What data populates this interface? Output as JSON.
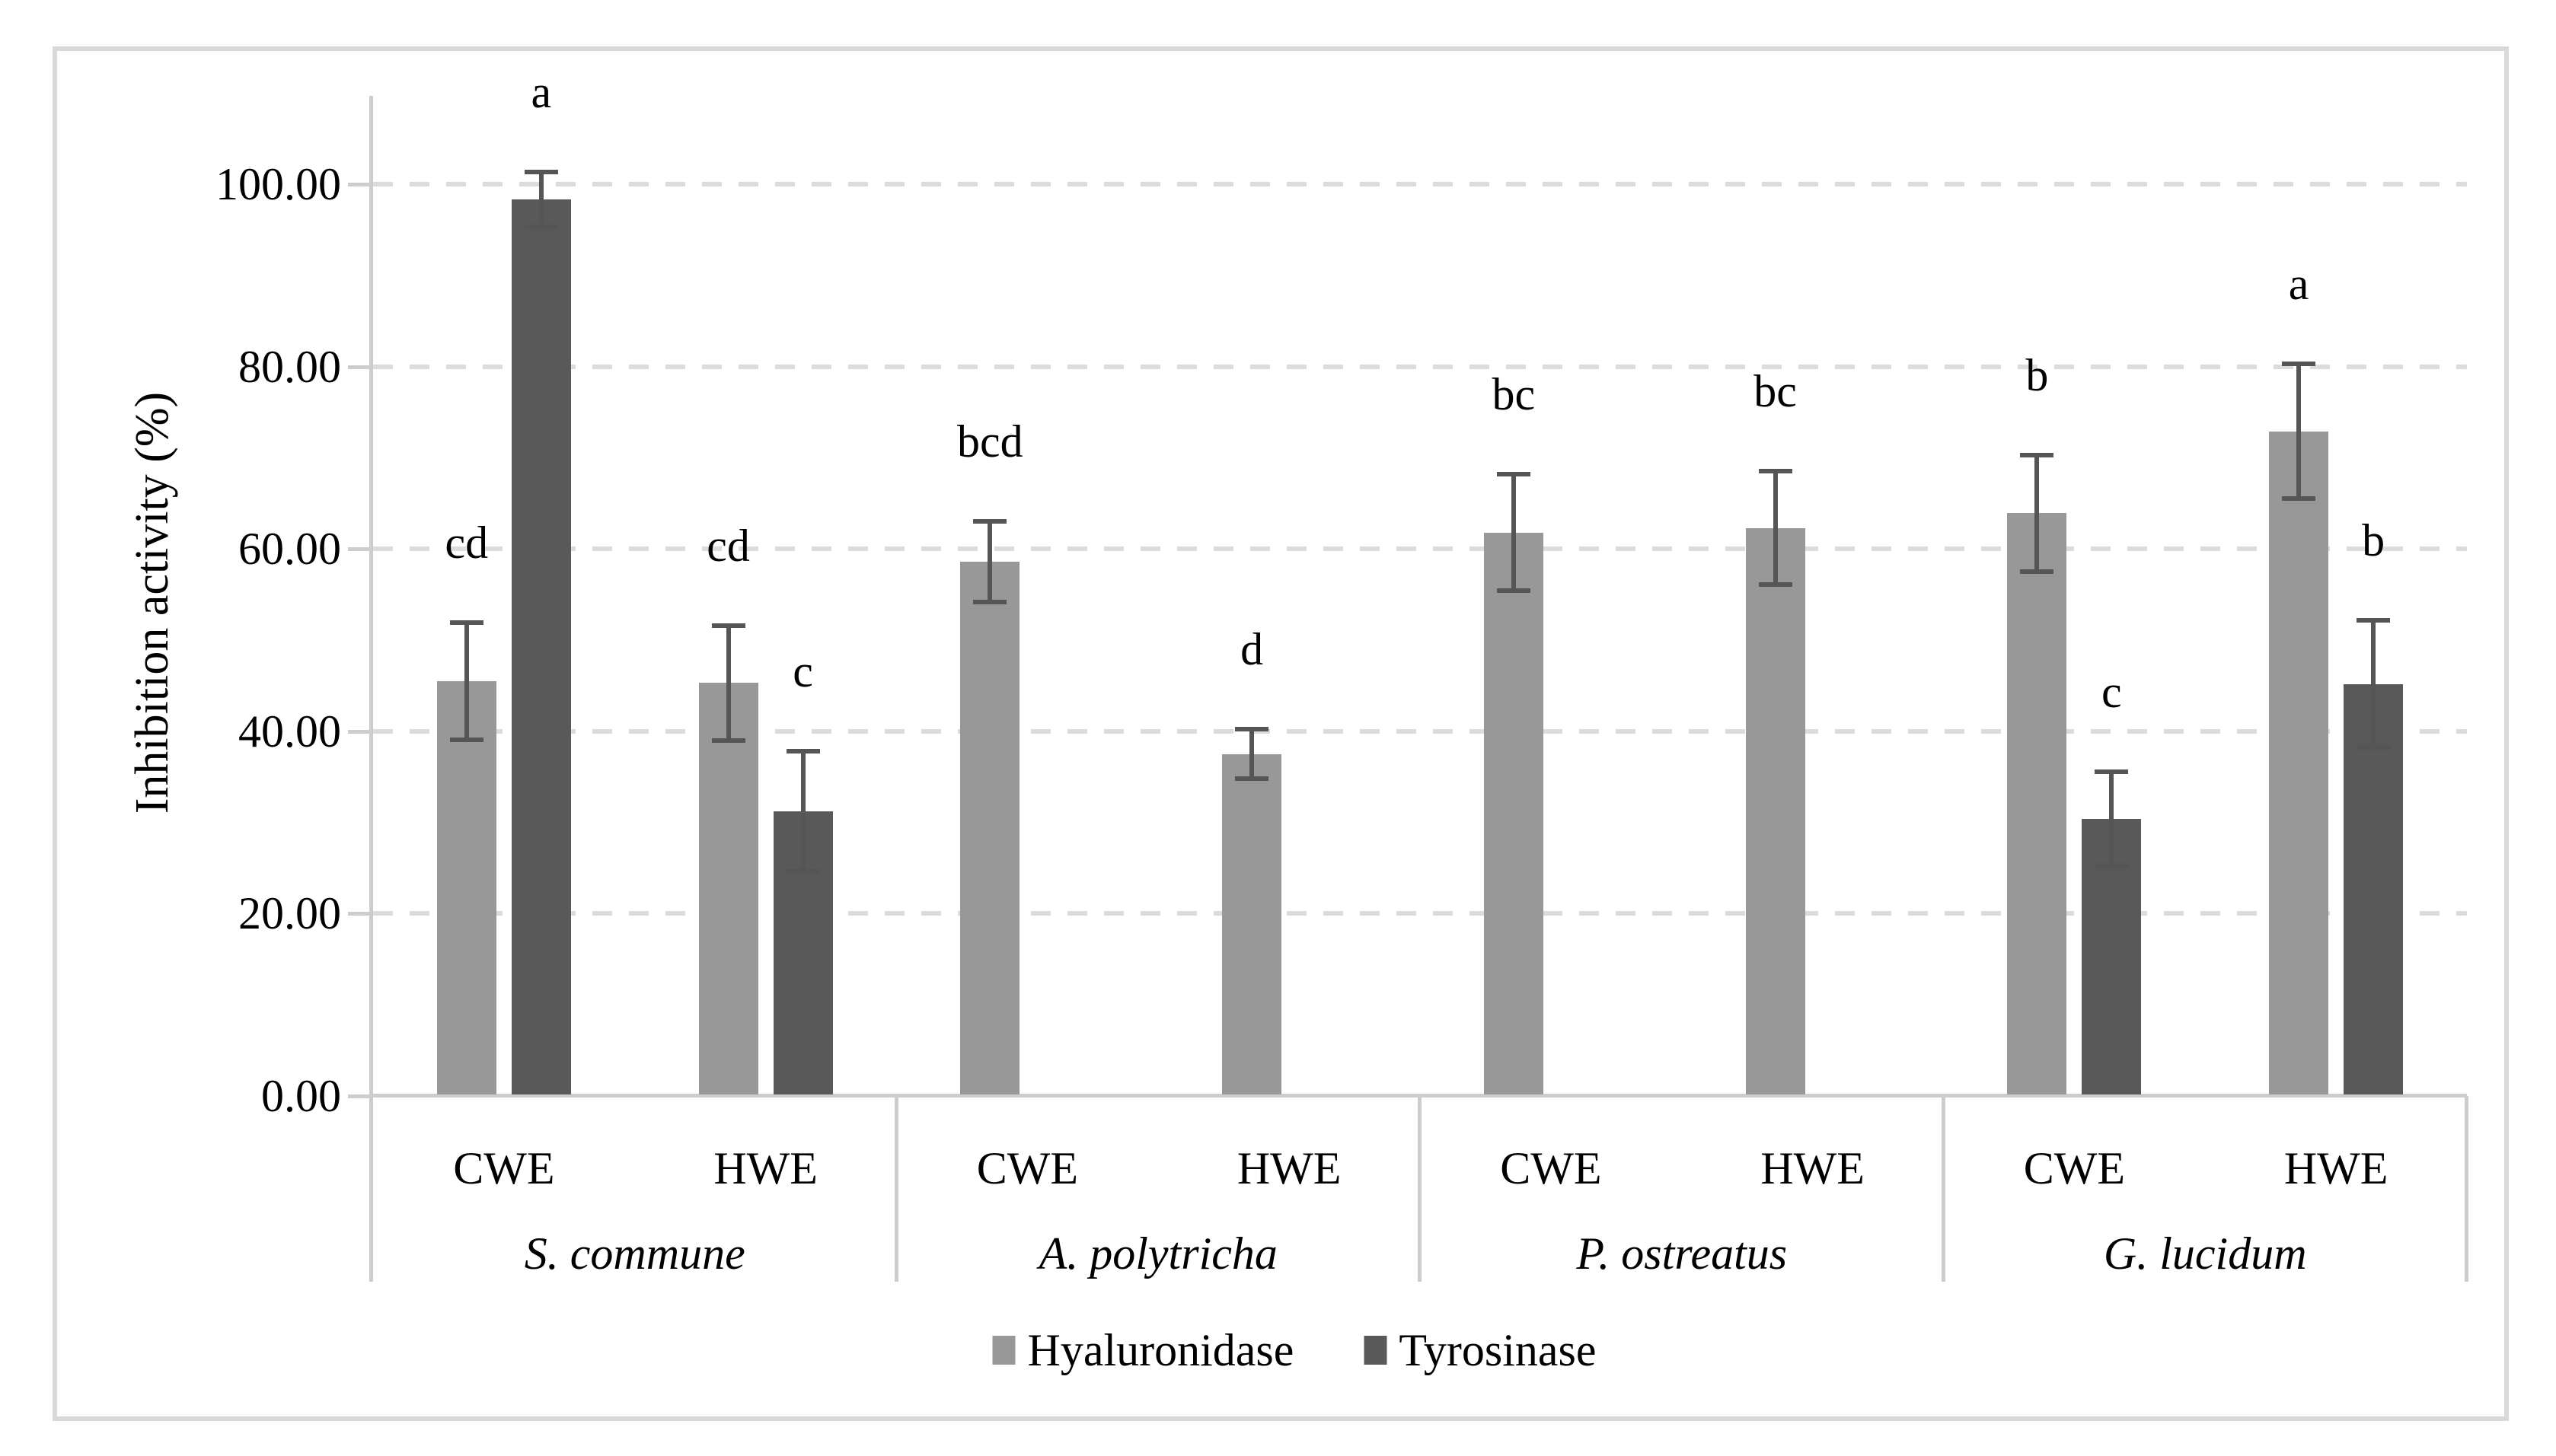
{
  "figure": {
    "frame_color": "#d9d9d9",
    "background": "#ffffff"
  },
  "colors": {
    "hyaluronidase_bar": "#989898",
    "tyrosinase_bar": "#595959",
    "error_bar": "#555555",
    "gridline": "#dcdcdc",
    "axis_line": "#cdcdcd",
    "text": "#000000"
  },
  "chart_data": {
    "type": "bar",
    "title": "",
    "ylabel": "Inhibition activity (%)",
    "xlabel": "",
    "ylim": [
      0,
      100
    ],
    "ytick_step": 20,
    "ytick_values": [
      0,
      20,
      40,
      60,
      80,
      100
    ],
    "ytick_labels": [
      "0.00",
      "20.00",
      "40.00",
      "60.00",
      "80.00",
      "100.00"
    ],
    "grid": "horizontal-dashed",
    "legend_position": "bottom-center",
    "series": [
      {
        "name": "Hyaluronidase",
        "color": "#989898"
      },
      {
        "name": "Tyrosinase",
        "color": "#595959"
      }
    ],
    "groups": [
      {
        "species": "S. commune",
        "extracts": [
          {
            "label": "CWE",
            "bars": [
              {
                "series": "Hyaluronidase",
                "value": 45.5,
                "error": 6.4,
                "letter": "cd"
              },
              {
                "series": "Tyrosinase",
                "value": 98.3,
                "error": 3.0,
                "letter": "a"
              }
            ]
          },
          {
            "label": "HWE",
            "bars": [
              {
                "series": "Hyaluronidase",
                "value": 45.3,
                "error": 6.3,
                "letter": "cd"
              },
              {
                "series": "Tyrosinase",
                "value": 31.2,
                "error": 6.6,
                "letter": "c"
              }
            ]
          }
        ]
      },
      {
        "species": "A. polytricha",
        "extracts": [
          {
            "label": "CWE",
            "bars": [
              {
                "series": "Hyaluronidase",
                "value": 58.6,
                "error": 4.4,
                "letter": "bcd"
              }
            ]
          },
          {
            "label": "HWE",
            "bars": [
              {
                "series": "Hyaluronidase",
                "value": 37.5,
                "error": 2.7,
                "letter": "d"
              }
            ]
          }
        ]
      },
      {
        "species": "P. ostreatus",
        "extracts": [
          {
            "label": "CWE",
            "bars": [
              {
                "series": "Hyaluronidase",
                "value": 61.8,
                "error": 6.4,
                "letter": "bc"
              }
            ]
          },
          {
            "label": "HWE",
            "bars": [
              {
                "series": "Hyaluronidase",
                "value": 62.3,
                "error": 6.2,
                "letter": "bc"
              }
            ]
          }
        ]
      },
      {
        "species": "G. lucidum",
        "extracts": [
          {
            "label": "CWE",
            "bars": [
              {
                "series": "Hyaluronidase",
                "value": 63.9,
                "error": 6.4,
                "letter": "b"
              },
              {
                "series": "Tyrosinase",
                "value": 30.4,
                "error": 5.2,
                "letter": "c"
              }
            ]
          },
          {
            "label": "HWE",
            "bars": [
              {
                "series": "Hyaluronidase",
                "value": 72.9,
                "error": 7.4,
                "letter": "a"
              },
              {
                "series": "Tyrosinase",
                "value": 45.2,
                "error": 7.0,
                "letter": "b"
              }
            ]
          }
        ]
      }
    ]
  }
}
